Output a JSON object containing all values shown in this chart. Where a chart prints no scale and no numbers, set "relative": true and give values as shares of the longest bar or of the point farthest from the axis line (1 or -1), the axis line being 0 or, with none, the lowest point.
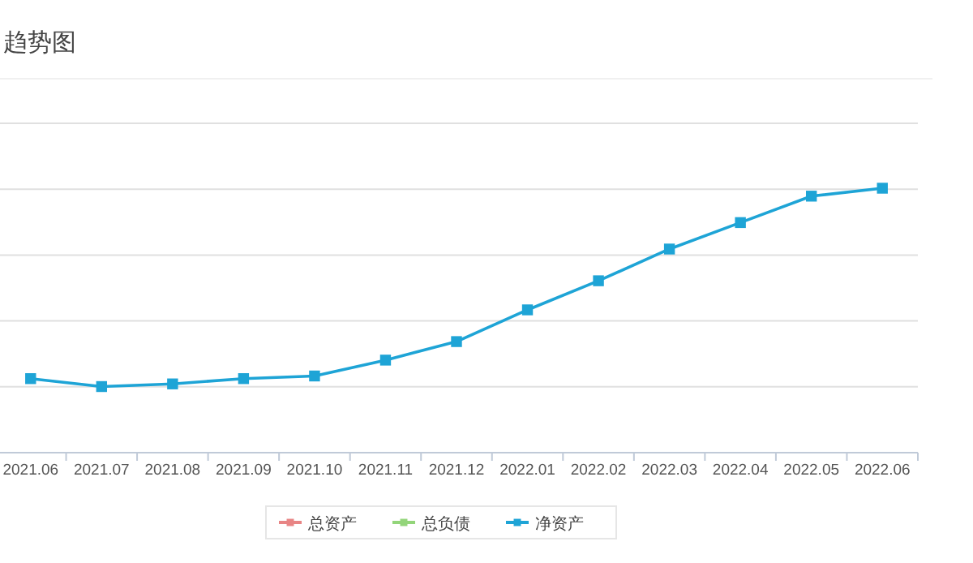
{
  "chart_data": {
    "type": "line",
    "title": "趋势图",
    "relative": true,
    "grid": true,
    "legend": "bottom",
    "marker": "square",
    "categories": [
      "2021.06",
      "2021.07",
      "2021.08",
      "2021.09",
      "2021.10",
      "2021.11",
      "2021.12",
      "2022.01",
      "2022.02",
      "2022.03",
      "2022.04",
      "2022.05",
      "2022.06"
    ],
    "series": [
      {
        "name": "总资产",
        "color": "#e88585",
        "values": [
          null,
          null,
          null,
          null,
          null,
          null,
          null,
          null,
          null,
          null,
          null,
          null,
          null
        ]
      },
      {
        "name": "总负债",
        "color": "#93d57a",
        "values": [
          null,
          null,
          null,
          null,
          null,
          null,
          null,
          null,
          null,
          null,
          null,
          null,
          null
        ]
      },
      {
        "name": "净资产",
        "color": "#1ea4d6",
        "values": [
          0.28,
          0.25,
          0.26,
          0.28,
          0.29,
          0.35,
          0.42,
          0.54,
          0.65,
          0.77,
          0.87,
          0.97,
          1
        ]
      }
    ]
  }
}
